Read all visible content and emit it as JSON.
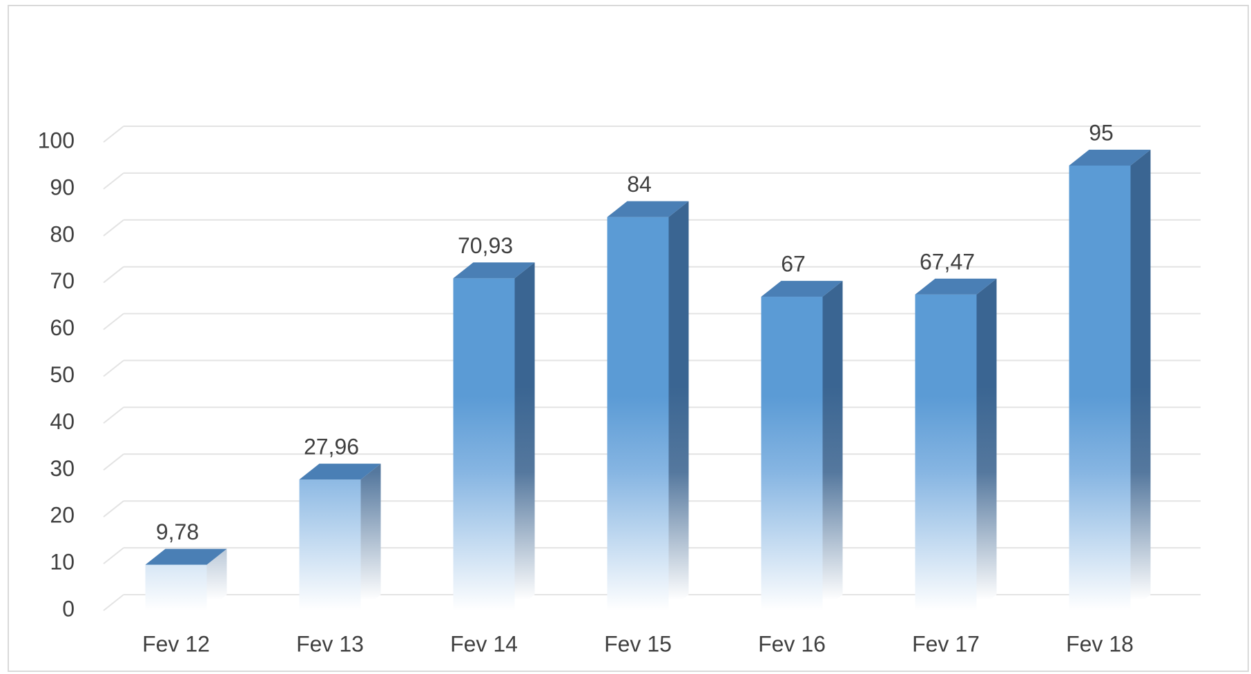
{
  "chart_data": {
    "type": "bar3d",
    "categories": [
      "Fev 12",
      "Fev 13",
      "Fev 14",
      "Fev 15",
      "Fev 16",
      "Fev 17",
      "Fev 18"
    ],
    "values": [
      9.78,
      27.96,
      70.93,
      84,
      67,
      67.47,
      95
    ],
    "value_labels": [
      "9,78",
      "27,96",
      "70,93",
      "84",
      "67",
      "67,47",
      "95"
    ],
    "color": "#5b9bd5",
    "ylim": [
      0,
      100
    ],
    "yticks": [
      0,
      10,
      20,
      30,
      40,
      50,
      60,
      70,
      80,
      90,
      100
    ],
    "grid": true
  }
}
